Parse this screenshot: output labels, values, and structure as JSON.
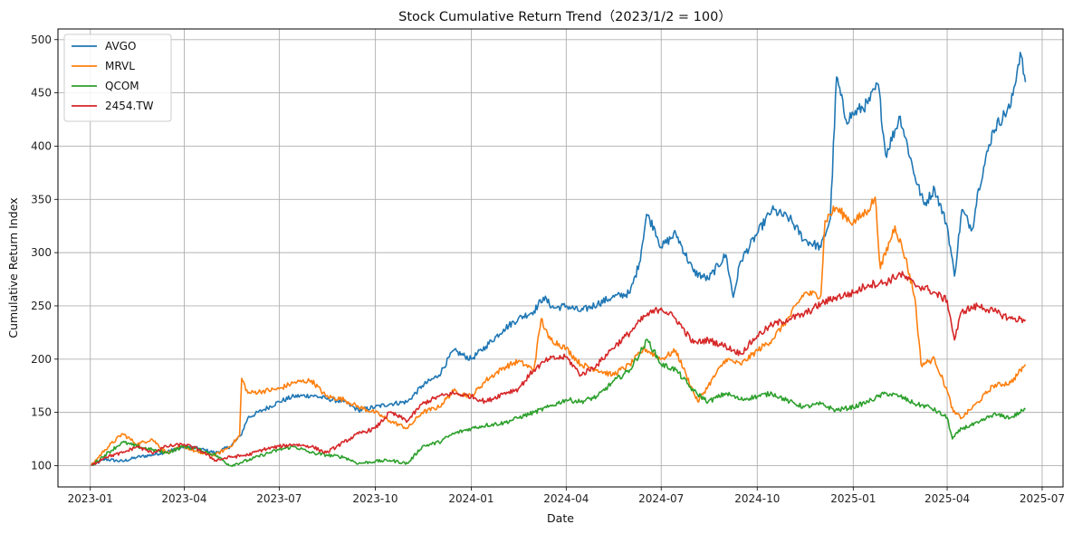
{
  "chart_data": {
    "type": "line",
    "title": "Stock Cumulative Return Trend（2023/1/2 = 100）",
    "xlabel": "Date",
    "ylabel": "Cumulative Return Index",
    "x_ticks": [
      "2023-01",
      "2023-04",
      "2023-07",
      "2023-10",
      "2024-01",
      "2024-04",
      "2024-07",
      "2024-10",
      "2025-01",
      "2025-04",
      "2025-07"
    ],
    "y_ticks": [
      100,
      150,
      200,
      250,
      300,
      350,
      400,
      450,
      500
    ],
    "xlim": [
      "2022-12-01",
      "2025-07-21"
    ],
    "ylim": [
      80,
      510
    ],
    "grid": true,
    "legend_position": "top-left",
    "series": [
      {
        "name": "AVGO",
        "color": "#1f77b4",
        "points": [
          [
            "2023-01-02",
            100
          ],
          [
            "2023-01-15",
            106
          ],
          [
            "2023-02-01",
            104
          ],
          [
            "2023-02-15",
            108
          ],
          [
            "2023-03-01",
            110
          ],
          [
            "2023-03-15",
            113
          ],
          [
            "2023-04-01",
            118
          ],
          [
            "2023-04-15",
            116
          ],
          [
            "2023-05-01",
            112
          ],
          [
            "2023-05-15",
            118
          ],
          [
            "2023-05-25",
            128
          ],
          [
            "2023-06-01",
            145
          ],
          [
            "2023-06-15",
            152
          ],
          [
            "2023-07-01",
            160
          ],
          [
            "2023-07-15",
            165
          ],
          [
            "2023-08-01",
            166
          ],
          [
            "2023-08-15",
            163
          ],
          [
            "2023-09-01",
            160
          ],
          [
            "2023-09-15",
            152
          ],
          [
            "2023-10-01",
            155
          ],
          [
            "2023-10-15",
            158
          ],
          [
            "2023-11-01",
            160
          ],
          [
            "2023-11-15",
            175
          ],
          [
            "2023-12-01",
            185
          ],
          [
            "2023-12-15",
            208
          ],
          [
            "2024-01-01",
            200
          ],
          [
            "2024-01-15",
            212
          ],
          [
            "2024-02-01",
            228
          ],
          [
            "2024-02-15",
            238
          ],
          [
            "2024-03-01",
            245
          ],
          [
            "2024-03-10",
            258
          ],
          [
            "2024-03-20",
            248
          ],
          [
            "2024-04-01",
            250
          ],
          [
            "2024-04-15",
            245
          ],
          [
            "2024-05-01",
            252
          ],
          [
            "2024-05-15",
            258
          ],
          [
            "2024-06-01",
            262
          ],
          [
            "2024-06-10",
            290
          ],
          [
            "2024-06-17",
            336
          ],
          [
            "2024-06-25",
            322
          ],
          [
            "2024-07-01",
            305
          ],
          [
            "2024-07-15",
            318
          ],
          [
            "2024-08-01",
            282
          ],
          [
            "2024-08-15",
            275
          ],
          [
            "2024-09-01",
            298
          ],
          [
            "2024-09-08",
            258
          ],
          [
            "2024-09-15",
            292
          ],
          [
            "2024-10-01",
            318
          ],
          [
            "2024-10-15",
            340
          ],
          [
            "2024-11-01",
            332
          ],
          [
            "2024-11-15",
            312
          ],
          [
            "2024-12-01",
            305
          ],
          [
            "2024-12-10",
            332
          ],
          [
            "2024-12-16",
            465
          ],
          [
            "2024-12-25",
            425
          ],
          [
            "2025-01-01",
            430
          ],
          [
            "2025-01-15",
            440
          ],
          [
            "2025-01-25",
            458
          ],
          [
            "2025-02-01",
            392
          ],
          [
            "2025-02-15",
            428
          ],
          [
            "2025-03-01",
            372
          ],
          [
            "2025-03-10",
            345
          ],
          [
            "2025-03-20",
            360
          ],
          [
            "2025-04-01",
            325
          ],
          [
            "2025-04-08",
            278
          ],
          [
            "2025-04-15",
            340
          ],
          [
            "2025-04-25",
            322
          ],
          [
            "2025-05-01",
            360
          ],
          [
            "2025-05-15",
            415
          ],
          [
            "2025-06-01",
            438
          ],
          [
            "2025-06-10",
            488
          ],
          [
            "2025-06-15",
            460
          ]
        ]
      },
      {
        "name": "MRVL",
        "color": "#ff7f0e",
        "points": [
          [
            "2023-01-02",
            100
          ],
          [
            "2023-01-15",
            115
          ],
          [
            "2023-02-01",
            130
          ],
          [
            "2023-02-15",
            120
          ],
          [
            "2023-03-01",
            125
          ],
          [
            "2023-03-15",
            112
          ],
          [
            "2023-04-01",
            118
          ],
          [
            "2023-04-15",
            112
          ],
          [
            "2023-05-01",
            110
          ],
          [
            "2023-05-15",
            118
          ],
          [
            "2023-05-24",
            128
          ],
          [
            "2023-05-26",
            182
          ],
          [
            "2023-06-01",
            168
          ],
          [
            "2023-06-15",
            170
          ],
          [
            "2023-07-01",
            172
          ],
          [
            "2023-07-15",
            178
          ],
          [
            "2023-08-01",
            180
          ],
          [
            "2023-08-15",
            165
          ],
          [
            "2023-09-01",
            162
          ],
          [
            "2023-09-15",
            155
          ],
          [
            "2023-10-01",
            150
          ],
          [
            "2023-10-15",
            142
          ],
          [
            "2023-11-01",
            135
          ],
          [
            "2023-11-15",
            150
          ],
          [
            "2023-12-01",
            155
          ],
          [
            "2023-12-15",
            170
          ],
          [
            "2024-01-01",
            165
          ],
          [
            "2024-01-15",
            180
          ],
          [
            "2024-02-01",
            192
          ],
          [
            "2024-02-15",
            198
          ],
          [
            "2024-03-01",
            190
          ],
          [
            "2024-03-08",
            238
          ],
          [
            "2024-03-15",
            220
          ],
          [
            "2024-04-01",
            210
          ],
          [
            "2024-04-15",
            195
          ],
          [
            "2024-05-01",
            190
          ],
          [
            "2024-05-15",
            185
          ],
          [
            "2024-06-01",
            195
          ],
          [
            "2024-06-15",
            210
          ],
          [
            "2024-07-01",
            200
          ],
          [
            "2024-07-15",
            208
          ],
          [
            "2024-07-25",
            185
          ],
          [
            "2024-08-05",
            160
          ],
          [
            "2024-08-15",
            175
          ],
          [
            "2024-09-01",
            200
          ],
          [
            "2024-09-15",
            195
          ],
          [
            "2024-10-01",
            208
          ],
          [
            "2024-10-15",
            218
          ],
          [
            "2024-11-01",
            240
          ],
          [
            "2024-11-15",
            262
          ],
          [
            "2024-12-01",
            260
          ],
          [
            "2024-12-05",
            330
          ],
          [
            "2024-12-15",
            342
          ],
          [
            "2025-01-01",
            328
          ],
          [
            "2025-01-15",
            340
          ],
          [
            "2025-01-22",
            352
          ],
          [
            "2025-01-27",
            285
          ],
          [
            "2025-02-10",
            325
          ],
          [
            "2025-02-20",
            295
          ],
          [
            "2025-03-01",
            258
          ],
          [
            "2025-03-07",
            195
          ],
          [
            "2025-03-20",
            200
          ],
          [
            "2025-04-01",
            170
          ],
          [
            "2025-04-07",
            150
          ],
          [
            "2025-04-15",
            145
          ],
          [
            "2025-05-01",
            160
          ],
          [
            "2025-05-15",
            175
          ],
          [
            "2025-06-01",
            178
          ],
          [
            "2025-06-15",
            195
          ]
        ]
      },
      {
        "name": "QCOM",
        "color": "#2ca02c",
        "points": [
          [
            "2023-01-02",
            100
          ],
          [
            "2023-01-15",
            110
          ],
          [
            "2023-02-01",
            122
          ],
          [
            "2023-02-15",
            118
          ],
          [
            "2023-03-01",
            115
          ],
          [
            "2023-03-15",
            112
          ],
          [
            "2023-04-01",
            118
          ],
          [
            "2023-04-15",
            115
          ],
          [
            "2023-05-01",
            110
          ],
          [
            "2023-05-15",
            100
          ],
          [
            "2023-06-01",
            105
          ],
          [
            "2023-06-15",
            110
          ],
          [
            "2023-07-01",
            115
          ],
          [
            "2023-07-15",
            118
          ],
          [
            "2023-08-01",
            112
          ],
          [
            "2023-08-15",
            110
          ],
          [
            "2023-09-01",
            108
          ],
          [
            "2023-09-15",
            102
          ],
          [
            "2023-10-01",
            104
          ],
          [
            "2023-10-15",
            105
          ],
          [
            "2023-11-01",
            102
          ],
          [
            "2023-11-15",
            118
          ],
          [
            "2023-12-01",
            122
          ],
          [
            "2023-12-15",
            130
          ],
          [
            "2024-01-01",
            135
          ],
          [
            "2024-01-15",
            138
          ],
          [
            "2024-02-01",
            140
          ],
          [
            "2024-02-15",
            145
          ],
          [
            "2024-03-01",
            150
          ],
          [
            "2024-03-15",
            155
          ],
          [
            "2024-04-01",
            162
          ],
          [
            "2024-04-15",
            160
          ],
          [
            "2024-05-01",
            165
          ],
          [
            "2024-05-15",
            178
          ],
          [
            "2024-06-01",
            190
          ],
          [
            "2024-06-18",
            218
          ],
          [
            "2024-07-01",
            195
          ],
          [
            "2024-07-15",
            190
          ],
          [
            "2024-08-01",
            170
          ],
          [
            "2024-08-15",
            160
          ],
          [
            "2024-09-01",
            168
          ],
          [
            "2024-09-15",
            162
          ],
          [
            "2024-10-01",
            165
          ],
          [
            "2024-10-15",
            168
          ],
          [
            "2024-11-01",
            160
          ],
          [
            "2024-11-15",
            155
          ],
          [
            "2024-12-01",
            158
          ],
          [
            "2024-12-15",
            152
          ],
          [
            "2025-01-01",
            155
          ],
          [
            "2025-01-15",
            160
          ],
          [
            "2025-02-01",
            168
          ],
          [
            "2025-02-15",
            165
          ],
          [
            "2025-03-01",
            158
          ],
          [
            "2025-03-15",
            155
          ],
          [
            "2025-04-01",
            145
          ],
          [
            "2025-04-06",
            125
          ],
          [
            "2025-04-15",
            135
          ],
          [
            "2025-05-01",
            140
          ],
          [
            "2025-05-15",
            148
          ],
          [
            "2025-06-01",
            145
          ],
          [
            "2025-06-15",
            153
          ]
        ]
      },
      {
        "name": "2454.TW",
        "color": "#d62728",
        "points": [
          [
            "2023-01-02",
            100
          ],
          [
            "2023-01-15",
            108
          ],
          [
            "2023-02-01",
            112
          ],
          [
            "2023-02-15",
            118
          ],
          [
            "2023-03-01",
            112
          ],
          [
            "2023-03-15",
            118
          ],
          [
            "2023-04-01",
            120
          ],
          [
            "2023-04-15",
            115
          ],
          [
            "2023-05-01",
            105
          ],
          [
            "2023-05-15",
            108
          ],
          [
            "2023-06-01",
            110
          ],
          [
            "2023-06-15",
            115
          ],
          [
            "2023-07-01",
            118
          ],
          [
            "2023-07-15",
            120
          ],
          [
            "2023-08-01",
            118
          ],
          [
            "2023-08-15",
            112
          ],
          [
            "2023-09-01",
            122
          ],
          [
            "2023-09-15",
            130
          ],
          [
            "2023-10-01",
            135
          ],
          [
            "2023-10-15",
            150
          ],
          [
            "2023-11-01",
            142
          ],
          [
            "2023-11-15",
            158
          ],
          [
            "2023-12-01",
            165
          ],
          [
            "2023-12-15",
            168
          ],
          [
            "2024-01-01",
            165
          ],
          [
            "2024-01-15",
            160
          ],
          [
            "2024-02-01",
            168
          ],
          [
            "2024-02-15",
            172
          ],
          [
            "2024-03-01",
            190
          ],
          [
            "2024-03-15",
            200
          ],
          [
            "2024-04-01",
            202
          ],
          [
            "2024-04-15",
            185
          ],
          [
            "2024-05-01",
            195
          ],
          [
            "2024-05-15",
            210
          ],
          [
            "2024-06-01",
            225
          ],
          [
            "2024-06-15",
            240
          ],
          [
            "2024-07-01",
            248
          ],
          [
            "2024-07-15",
            238
          ],
          [
            "2024-08-01",
            215
          ],
          [
            "2024-08-15",
            218
          ],
          [
            "2024-09-01",
            212
          ],
          [
            "2024-09-15",
            205
          ],
          [
            "2024-10-01",
            222
          ],
          [
            "2024-10-15",
            232
          ],
          [
            "2024-11-01",
            238
          ],
          [
            "2024-11-15",
            242
          ],
          [
            "2024-12-01",
            252
          ],
          [
            "2024-12-15",
            258
          ],
          [
            "2025-01-01",
            262
          ],
          [
            "2025-01-15",
            270
          ],
          [
            "2025-02-01",
            272
          ],
          [
            "2025-02-15",
            280
          ],
          [
            "2025-03-01",
            270
          ],
          [
            "2025-03-15",
            265
          ],
          [
            "2025-04-01",
            255
          ],
          [
            "2025-04-08",
            218
          ],
          [
            "2025-04-15",
            245
          ],
          [
            "2025-05-01",
            250
          ],
          [
            "2025-05-15",
            245
          ],
          [
            "2025-06-01",
            238
          ],
          [
            "2025-06-15",
            237
          ]
        ]
      }
    ]
  }
}
